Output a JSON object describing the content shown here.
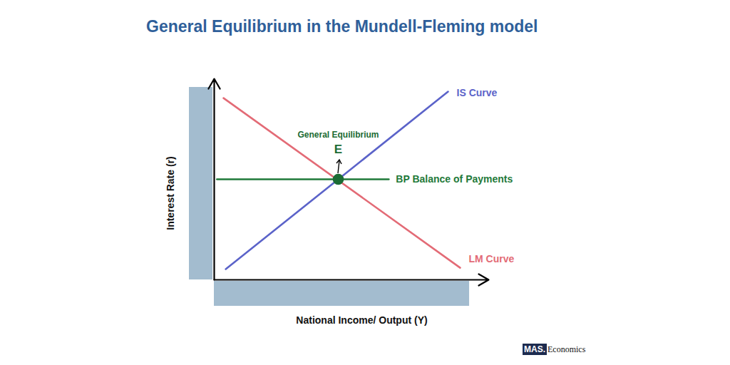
{
  "chart_data": {
    "type": "line",
    "title": "General Equilibrium in the Mundell-Fleming model",
    "x_label": "National Income/ Output (Y)",
    "y_label": "Interest Rate (r)",
    "xlim": [
      0,
      10
    ],
    "ylim": [
      0,
      10
    ],
    "tick_labels": false,
    "series": [
      {
        "name": "IS Curve",
        "color": "#5b63c9",
        "x": [
          0.42,
          8.52
        ],
        "values": [
          0.53,
          9.36
        ]
      },
      {
        "name": "LM Curve",
        "color": "#e36b76",
        "x": [
          0.34,
          8.96
        ],
        "values": [
          9.04,
          0.6
        ]
      },
      {
        "name": "BP Balance of Payments",
        "color": "#1f7a3a",
        "x": [
          0.1,
          6.36
        ],
        "values": [
          5.0,
          5.0
        ]
      }
    ],
    "equilibrium": {
      "x": 4.52,
      "y": 5.0,
      "label": "E",
      "title": "General Equilibrium",
      "color": "#1b6b34"
    }
  },
  "credit": [
    "MAS.",
    "Economics"
  ]
}
